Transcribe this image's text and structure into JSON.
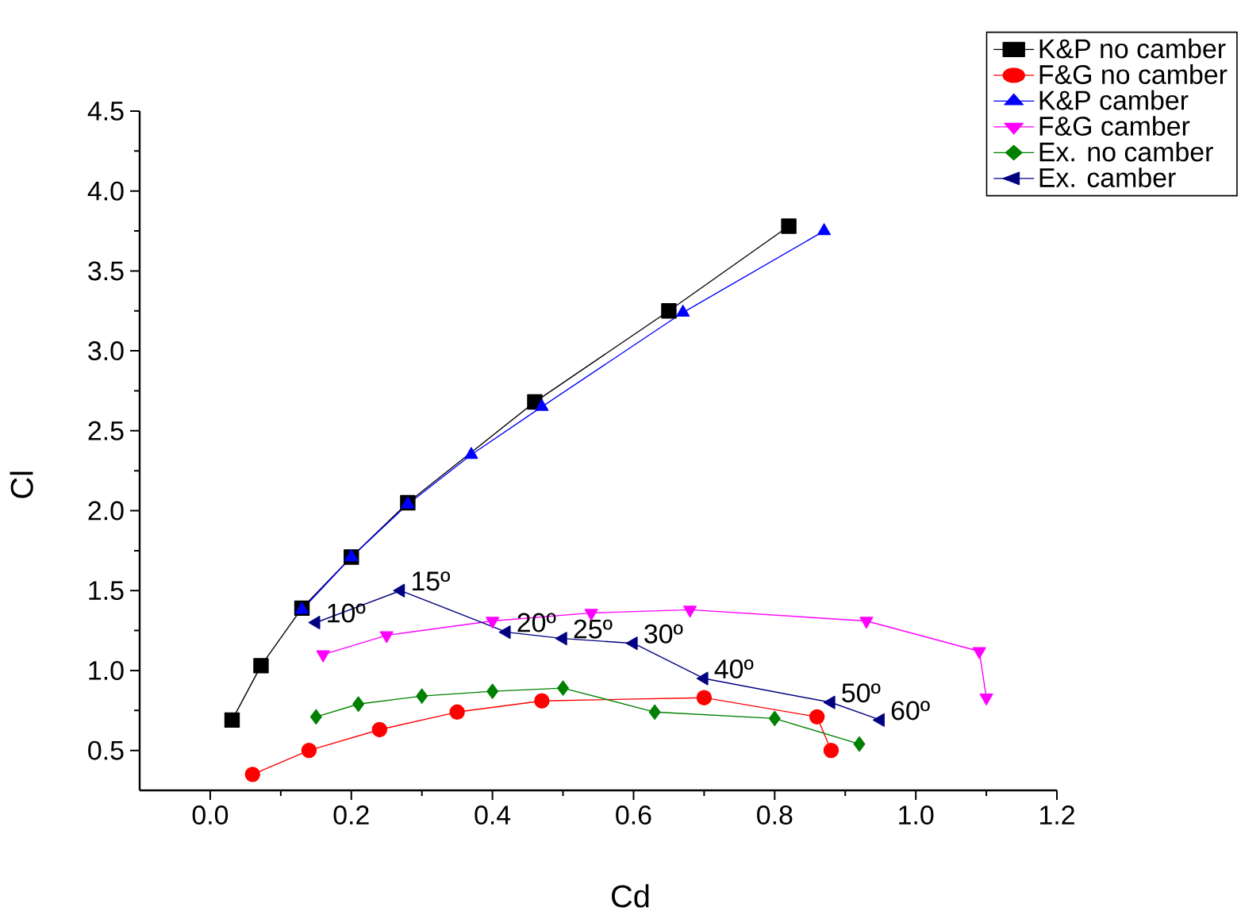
{
  "chart_data": {
    "type": "line",
    "xlabel": "Cd",
    "ylabel": "Cl",
    "xlim": [
      -0.1,
      1.2
    ],
    "ylim": [
      0.25,
      4.5
    ],
    "xticks": [
      {
        "value": 0.0,
        "label": "0.0"
      },
      0.2,
      0.4,
      0.6,
      0.8,
      {
        "value": 1.0,
        "label": "1.0"
      },
      1.2
    ],
    "yticks": [
      0.5,
      {
        "value": 1.0,
        "label": "1.0"
      },
      1.5,
      {
        "value": 2.0,
        "label": "2.0"
      },
      2.5,
      {
        "value": 3.0,
        "label": "3.0"
      },
      3.5,
      {
        "value": 4.0,
        "label": "4.0"
      },
      4.5
    ],
    "legend": "top right",
    "grid": false,
    "line_style": "solid",
    "series": [
      {
        "name": "K&P no camber",
        "color": "#000000",
        "marker": "square",
        "x": [
          0.031,
          0.072,
          0.13,
          0.2,
          0.28,
          0.46,
          0.65,
          0.82
        ],
        "values": [
          0.69,
          1.03,
          1.39,
          1.71,
          2.05,
          2.68,
          3.25,
          3.78
        ]
      },
      {
        "name": "F&G no camber",
        "color": "#ff0000",
        "marker": "circle",
        "x": [
          0.06,
          0.14,
          0.24,
          0.35,
          0.47,
          0.7,
          0.86,
          0.88
        ],
        "values": [
          0.35,
          0.5,
          0.63,
          0.74,
          0.81,
          0.83,
          0.71,
          0.5
        ]
      },
      {
        "name": "K&P camber",
        "color": "#0000ff",
        "marker": "triangle",
        "x": [
          0.13,
          0.2,
          0.28,
          0.37,
          0.47,
          0.67,
          0.87
        ],
        "values": [
          1.38,
          1.71,
          2.04,
          2.35,
          2.65,
          3.24,
          3.75
        ]
      },
      {
        "name": "F&G camber",
        "color": "#ff00ff",
        "marker": "triangle-down",
        "x": [
          0.16,
          0.25,
          0.4,
          0.54,
          0.68,
          0.93,
          1.09,
          1.1
        ],
        "values": [
          1.1,
          1.22,
          1.31,
          1.36,
          1.38,
          1.31,
          1.12,
          0.83
        ]
      },
      {
        "name": "Ex. no camber",
        "color": "#008000",
        "marker": "diamond",
        "x": [
          0.15,
          0.21,
          0.3,
          0.4,
          0.5,
          0.63,
          0.8,
          0.92
        ],
        "values": [
          0.71,
          0.79,
          0.84,
          0.87,
          0.89,
          0.74,
          0.7,
          0.54
        ]
      },
      {
        "name": "Ex. camber",
        "color": "#000080",
        "marker": "triangle-left",
        "x": [
          0.15,
          0.27,
          0.42,
          0.5,
          0.6,
          0.7,
          0.88,
          0.95
        ],
        "values": [
          1.3,
          1.5,
          1.24,
          1.2,
          1.17,
          0.95,
          0.8,
          0.69
        ]
      }
    ],
    "annotations": [
      {
        "text": "10º",
        "x": 0.15,
        "y": 1.3
      },
      {
        "text": "15º",
        "x": 0.27,
        "y": 1.5
      },
      {
        "text": "20º",
        "x": 0.42,
        "y": 1.24
      },
      {
        "text": "25º",
        "x": 0.5,
        "y": 1.2
      },
      {
        "text": "30º",
        "x": 0.6,
        "y": 1.17
      },
      {
        "text": "40º",
        "x": 0.7,
        "y": 0.95
      },
      {
        "text": "50º",
        "x": 0.88,
        "y": 0.8
      },
      {
        "text": "60º",
        "x": 0.95,
        "y": 0.69
      }
    ]
  }
}
